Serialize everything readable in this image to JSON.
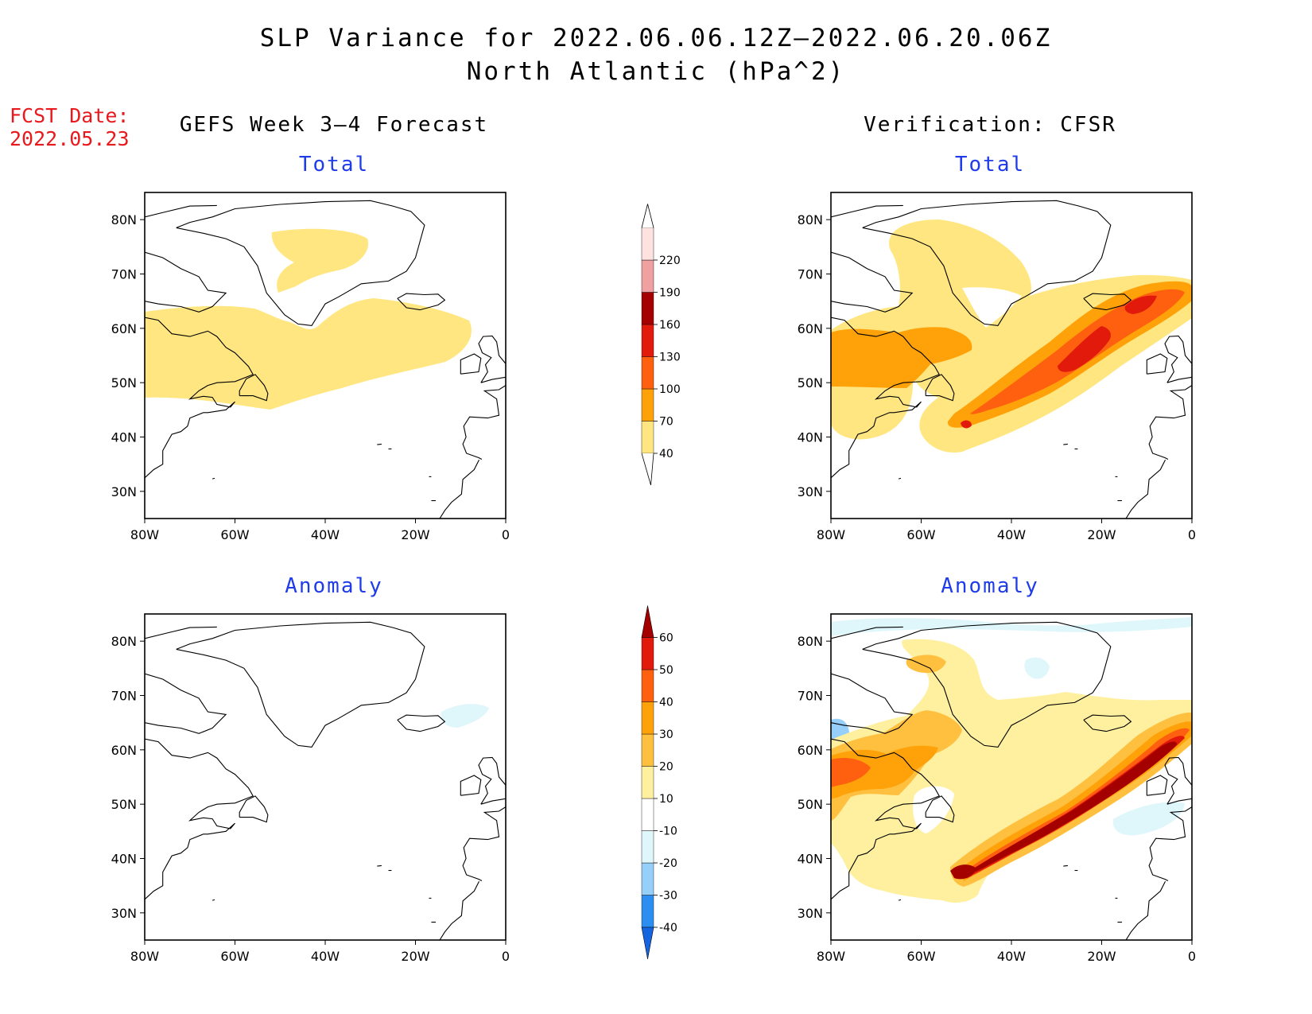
{
  "header": {
    "title_line1": "SLP Variance for 2022.06.06.12Z–2022.06.20.06Z",
    "title_line2": "North Atlantic (hPa^2)",
    "fcst_label": "FCST Date:",
    "fcst_date": "2022.05.23",
    "left_column_title": "GEFS Week 3–4 Forecast",
    "right_column_title": "Verification: CFSR"
  },
  "panels": {
    "top_left_title": "Total",
    "top_right_title": "Total",
    "bottom_left_title": "Anomaly",
    "bottom_right_title": "Anomaly"
  },
  "axes": {
    "lat_labels": [
      "80N",
      "70N",
      "60N",
      "50N",
      "40N",
      "30N"
    ],
    "lat_values": [
      80,
      70,
      60,
      50,
      40,
      30
    ],
    "lon_labels": [
      "80W",
      "60W",
      "40W",
      "20W",
      "0"
    ],
    "lon_values": [
      -80,
      -60,
      -40,
      -20,
      0
    ],
    "lon_range": [
      -80,
      0
    ],
    "lat_range": [
      25,
      85
    ]
  },
  "colorbar_total": {
    "levels": [
      "40",
      "70",
      "100",
      "130",
      "160",
      "190",
      "220"
    ],
    "colors": [
      "#ffe680",
      "#ffa20a",
      "#ff6010",
      "#e11a0c",
      "#a50000",
      "#f1a0a2",
      "#fde2e0"
    ]
  },
  "colorbar_anomaly": {
    "levels": [
      "-40",
      "-30",
      "-20",
      "-10",
      "10",
      "20",
      "30",
      "40",
      "50",
      "60"
    ],
    "colors": [
      "#1565e0",
      "#2c8ef0",
      "#96d0fa",
      "#dff6fb",
      "#ffffff",
      "#fff0a0",
      "#ffc040",
      "#ffa20a",
      "#ff6010",
      "#e11a0c",
      "#a50000"
    ]
  },
  "colors": {
    "forecast_text": "#e8191c",
    "subtitle_text": "#1f3ce8"
  }
}
